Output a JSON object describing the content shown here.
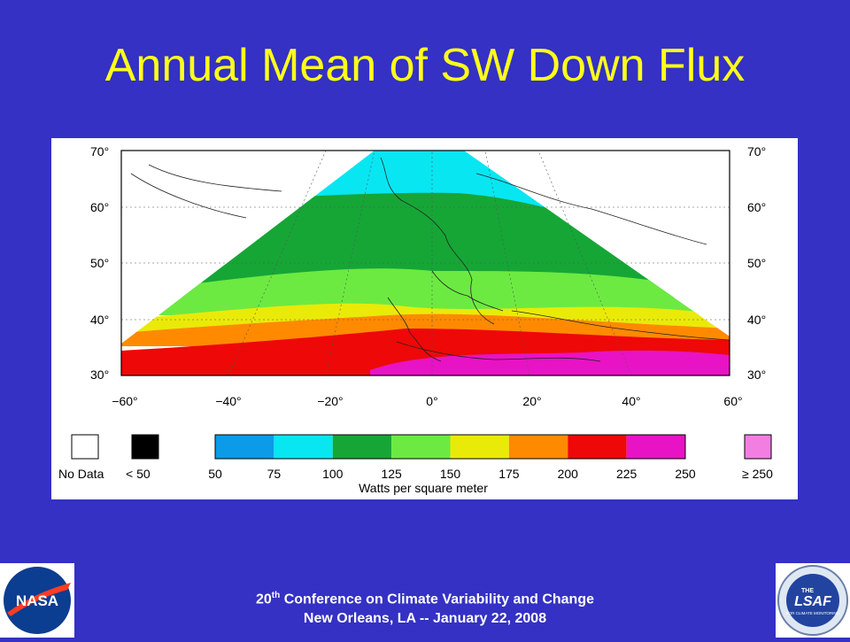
{
  "slide": {
    "title": "Annual Mean of SW Down Flux",
    "footer_line1_number": "20",
    "footer_line1_suffix": "th",
    "footer_line1_text": " Conference on Climate Variability and Change",
    "footer_line2": "New Orleans, LA -- January 22, 2008"
  },
  "logos": {
    "left": {
      "name": "NASA",
      "text": "NASA",
      "colors": {
        "circle": "#0b3d91",
        "chevron": "#fc3d21"
      }
    },
    "right": {
      "name": "LSA SAF",
      "text_top": "THE",
      "text_main": "LSAF",
      "text_sub": "FOR CLIMATE MONITORING"
    }
  },
  "map": {
    "lat_labels": [
      "70°",
      "60°",
      "50°",
      "40°",
      "30°"
    ],
    "lon_labels": [
      "−60°",
      "−40°",
      "−20°",
      "0°",
      "20°",
      "40°",
      "60°"
    ],
    "colorbar": {
      "no_data_label": "No Data",
      "below_label": "<  50",
      "above_label": "≥ 250",
      "tick_labels": [
        "50",
        "75",
        "100",
        "125",
        "150",
        "175",
        "200",
        "225",
        "250"
      ],
      "units": "Watts per square meter",
      "colors": [
        "#0b9be8",
        "#08e6f2",
        "#16a636",
        "#6cea42",
        "#eaea08",
        "#ff8a00",
        "#ee0808",
        "#e813c4"
      ],
      "no_data_color": "#ffffff",
      "below_color": "#000000",
      "above_color": "#f27ee2"
    }
  }
}
